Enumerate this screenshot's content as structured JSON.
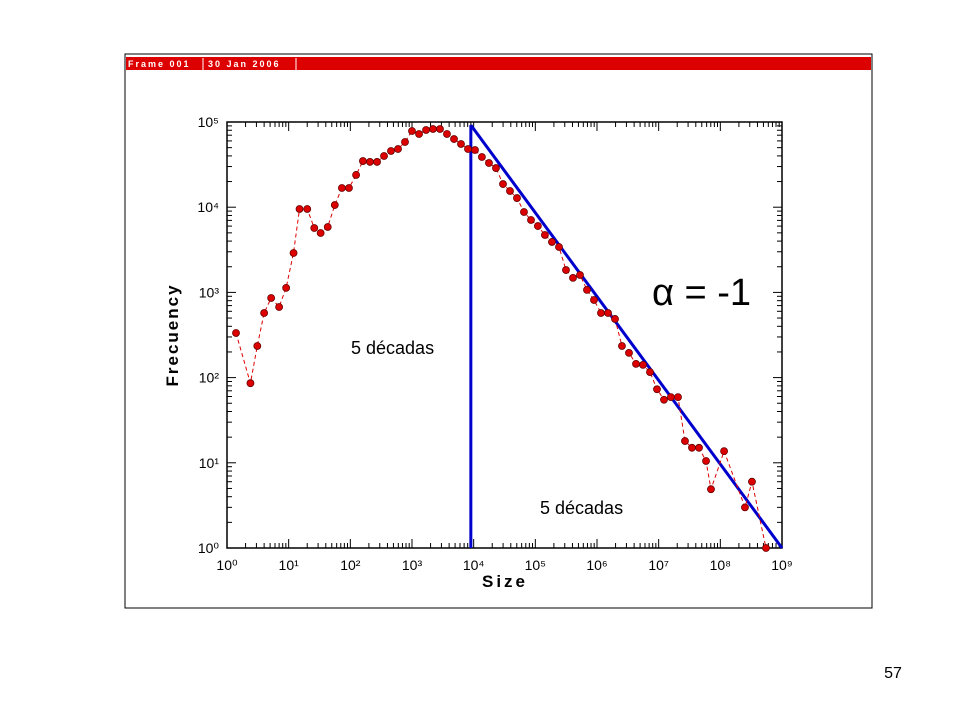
{
  "header": {
    "frame": "Frame 001",
    "date": "30 Jan 2006"
  },
  "page_number": "57",
  "chart_data": {
    "type": "scatter-line",
    "x_label": "Size",
    "y_label": "Frecuency",
    "log_x": true,
    "log_y": true,
    "minor_ticks": true,
    "xlim": [
      1,
      1000000000
    ],
    "ylim": [
      1,
      100000
    ],
    "xticks": [
      {
        "value": 1,
        "label": "10⁰"
      },
      {
        "value": 10,
        "label": "10¹"
      },
      {
        "value": 100,
        "label": "10²"
      },
      {
        "value": 1000,
        "label": "10³"
      },
      {
        "value": 10000,
        "label": "10⁴"
      },
      {
        "value": 100000,
        "label": "10⁵"
      },
      {
        "value": 1000000,
        "label": "10⁶"
      },
      {
        "value": 10000000,
        "label": "10⁷"
      },
      {
        "value": 100000000,
        "label": "10⁸"
      },
      {
        "value": 1000000000,
        "label": "10⁹"
      }
    ],
    "yticks": [
      {
        "value": 1,
        "label": "10⁰"
      },
      {
        "value": 10,
        "label": "10¹"
      },
      {
        "value": 100,
        "label": "10²"
      },
      {
        "value": 1000,
        "label": "10³"
      },
      {
        "value": 10000,
        "label": "10⁴"
      },
      {
        "value": 100000,
        "label": "10⁵"
      }
    ],
    "series": [
      {
        "color": "#dd0000",
        "x": [
          1.4,
          2.4,
          3.1,
          4.0,
          5.2,
          7.0,
          9.1,
          12,
          15,
          20,
          26,
          33,
          43,
          56,
          73,
          95,
          124,
          160,
          208,
          271,
          352,
          456,
          593,
          770,
          1000,
          1300,
          1690,
          2190,
          2840,
          3690,
          4800,
          6230,
          8090,
          10500,
          13600,
          17700,
          23000,
          29900,
          38800,
          50400,
          65400,
          85000,
          110000,
          143000,
          186000,
          242000,
          314000,
          408000,
          530000,
          688000,
          893000,
          1160000,
          1510000,
          1960000,
          2540000,
          3300000,
          4290000,
          5570000,
          7230000,
          9390000,
          12200000,
          15800000,
          20600000,
          26700000,
          34700000,
          45100000,
          58600000,
          70500000,
          115000000,
          251000000,
          326000000,
          550000000
        ],
        "values": [
          334,
          86,
          235,
          573,
          860,
          674,
          1130,
          2900,
          9530,
          9530,
          5700,
          4980,
          5860,
          10600,
          16800,
          16800,
          23900,
          34800,
          34000,
          34000,
          39900,
          45700,
          48200,
          58200,
          78400,
          72300,
          80600,
          82800,
          82800,
          72300,
          63100,
          55200,
          48200,
          46900,
          38800,
          33000,
          28800,
          18700,
          15500,
          12800,
          8790,
          7080,
          6010,
          4720,
          3910,
          3410,
          1830,
          1480,
          1600,
          1070,
          815,
          573,
          573,
          488,
          235,
          195,
          145,
          141,
          116,
          73,
          55,
          59,
          59,
          18,
          15,
          15,
          10.5,
          4.9,
          13.7,
          3.0,
          6.0,
          1
        ]
      }
    ],
    "reference_lines": [
      {
        "color": "#0000cc",
        "x": [
          9000,
          9000
        ],
        "y": [
          1,
          92000
        ]
      },
      {
        "color": "#0000cc",
        "x": [
          9000,
          1000000000
        ],
        "y": [
          92000,
          1
        ]
      }
    ],
    "annotations": [
      "α = -1",
      "5 décadas",
      "5 décadas"
    ]
  }
}
